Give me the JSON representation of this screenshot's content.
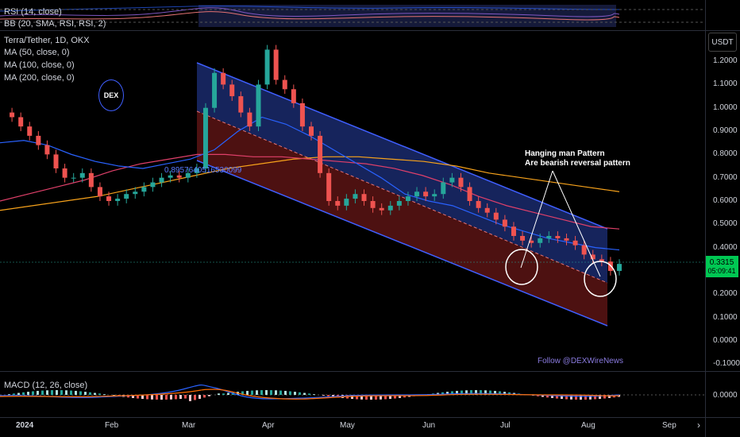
{
  "indicators": {
    "rsi_label": "RSI (14, close)",
    "bb_label": "BB (20, SMA, RSI, RSI, 2)",
    "symbol_label": "Terra/Tether, 1D, OKX",
    "ma50_label": "MA (50, close, 0)",
    "ma100_label": "MA (100, close, 0)",
    "ma200_label": "MA (200, close, 0)",
    "macd_label": "MACD (12, 26, close)"
  },
  "currency": "USDT",
  "logo_text": "DEX",
  "annotation": {
    "line1": "Hanging man Pattern",
    "line2": "Are bearish reversal pattern",
    "follow": "Follow @DEXWireNews",
    "fib_value": "0.8957640516530099"
  },
  "price_badge": {
    "price": "0.3315",
    "countdown": "05:09:41"
  },
  "macd_zero": "0.0000",
  "colors": {
    "up": "#26a69a",
    "down": "#ef5350",
    "ma50": "#2962ff",
    "ma100": "#e0406a",
    "ma200": "#f7a21b",
    "channel_top": "#1a2a6c",
    "channel_bottom": "#5a1414",
    "accent": "#00ff00"
  },
  "chart_data": {
    "type": "candlestick",
    "ylim": [
      -0.13,
      1.33
    ],
    "y_ticks": [
      "1.2000",
      "1.1000",
      "1.0000",
      "0.9000",
      "0.8000",
      "0.7000",
      "0.6000",
      "0.5000",
      "0.4000",
      "0.3000",
      "0.2000",
      "0.1000",
      "0.0000",
      "-0.1000"
    ],
    "x_ticks": [
      "2024",
      "Feb",
      "Mar",
      "Apr",
      "May",
      "Jun",
      "Jul",
      "Aug",
      "Sep"
    ],
    "close_series": [
      0.98,
      0.96,
      0.92,
      0.88,
      0.84,
      0.8,
      0.74,
      0.7,
      0.7,
      0.72,
      0.66,
      0.62,
      0.6,
      0.61,
      0.63,
      0.64,
      0.66,
      0.68,
      0.7,
      0.71,
      0.7,
      0.72,
      0.74,
      1.0,
      1.15,
      1.1,
      1.05,
      0.98,
      0.92,
      1.1,
      1.25,
      1.12,
      1.08,
      1.02,
      0.92,
      0.88,
      0.72,
      0.6,
      0.58,
      0.61,
      0.63,
      0.6,
      0.57,
      0.56,
      0.58,
      0.6,
      0.62,
      0.64,
      0.62,
      0.63,
      0.68,
      0.7,
      0.66,
      0.6,
      0.57,
      0.55,
      0.52,
      0.49,
      0.45,
      0.43,
      0.42,
      0.44,
      0.45,
      0.44,
      0.43,
      0.41,
      0.37,
      0.35,
      0.34,
      0.3,
      0.33
    ],
    "ma50": [
      0.85,
      0.86,
      0.84,
      0.8,
      0.77,
      0.75,
      0.74,
      0.76,
      0.78,
      0.82,
      0.9,
      0.96,
      0.93,
      0.88,
      0.82,
      0.76,
      0.7,
      0.63,
      0.6,
      0.58,
      0.54,
      0.5,
      0.47,
      0.44,
      0.42,
      0.4,
      0.39
    ],
    "ma100": [
      0.6,
      0.63,
      0.66,
      0.69,
      0.73,
      0.76,
      0.78,
      0.8,
      0.8,
      0.79,
      0.79,
      0.78,
      0.77,
      0.76,
      0.74,
      0.71,
      0.67,
      0.62,
      0.58,
      0.55,
      0.52,
      0.49,
      0.48
    ],
    "ma200": [
      0.56,
      0.58,
      0.6,
      0.62,
      0.65,
      0.68,
      0.71,
      0.74,
      0.76,
      0.78,
      0.79,
      0.79,
      0.78,
      0.77,
      0.75,
      0.72,
      0.7,
      0.68,
      0.66,
      0.64
    ]
  }
}
